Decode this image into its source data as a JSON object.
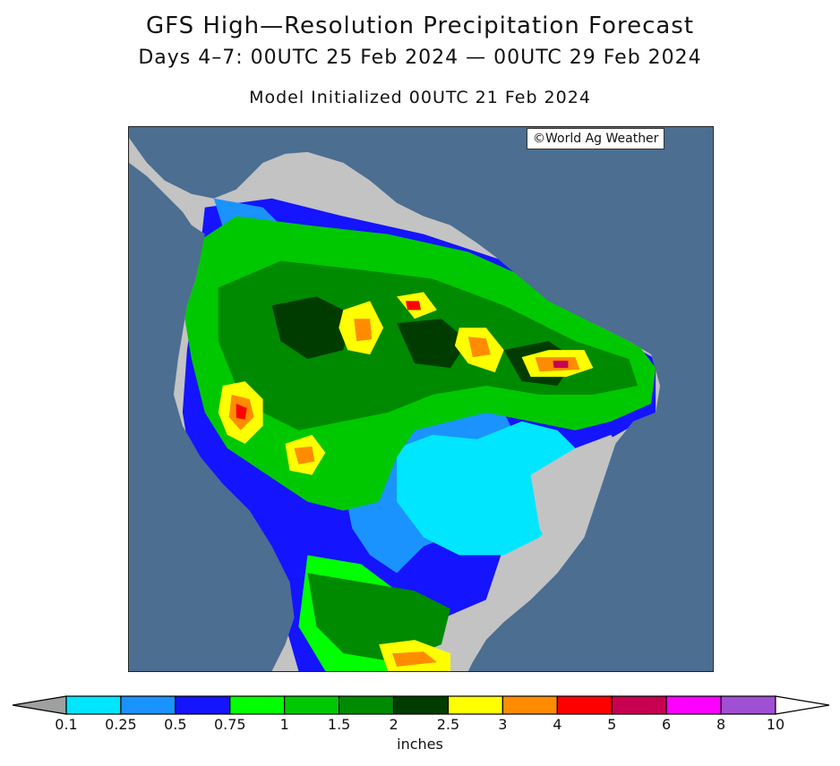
{
  "title": "GFS High—Resolution Precipitation Forecast",
  "subtitle": "Days 4–7: 00UTC 25 Feb 2024 — 00UTC 29 Feb 2024",
  "init_line": "Model Initialized 00UTC 21 Feb 2024",
  "credit": "©World Ag Weather",
  "legend": {
    "units": "inches",
    "ticks": [
      "0.1",
      "0.25",
      "0.5",
      "0.75",
      "1",
      "1.5",
      "2",
      "2.5",
      "3",
      "4",
      "5",
      "6",
      "8",
      "10"
    ],
    "colors": [
      "#9fa0a0",
      "#00e6ff",
      "#1a93ff",
      "#1414ff",
      "#00ff00",
      "#00c800",
      "#008a00",
      "#003c00",
      "#ffff00",
      "#ff8c00",
      "#ff0000",
      "#c80050",
      "#ff00ff",
      "#a050d2",
      "#ffffff"
    ]
  },
  "map_colors": {
    "ocean": "#4b6e91",
    "land_dry": "#c3c3c3"
  }
}
